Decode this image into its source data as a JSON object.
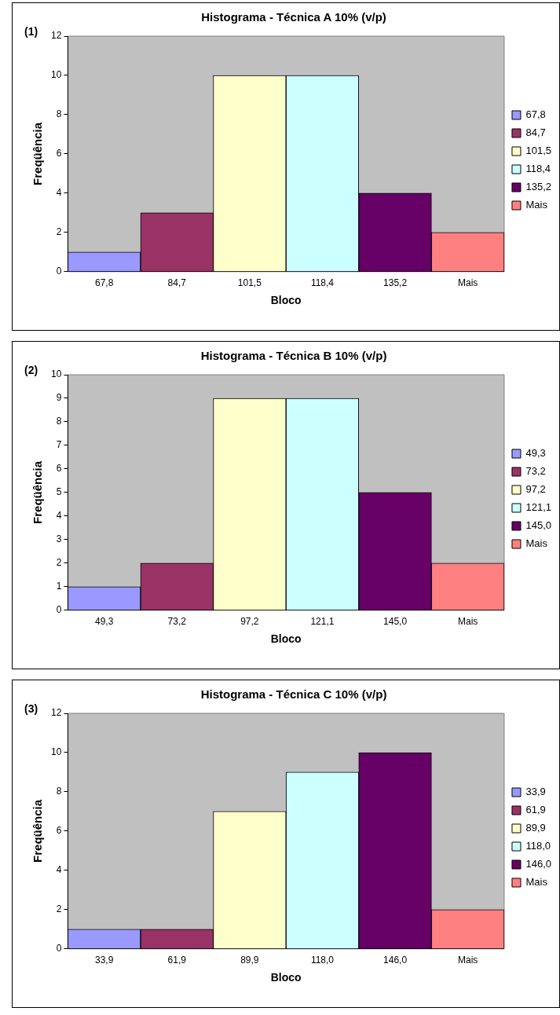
{
  "chart_data": [
    {
      "type": "bar",
      "title": "Histograma - Técnica A 10% (v/p)",
      "xlabel": "Bloco",
      "ylabel": "Freqüência",
      "annotations": [
        "(1)"
      ],
      "categories": [
        "67,8",
        "84,7",
        "101,5",
        "118,4",
        "135,2",
        "Mais"
      ],
      "series": [
        {
          "name": "67,8",
          "color": "#9999ff",
          "values": [
            1,
            null,
            null,
            null,
            null,
            null
          ]
        },
        {
          "name": "84,7",
          "color": "#993366",
          "values": [
            null,
            3,
            null,
            null,
            null,
            null
          ]
        },
        {
          "name": "101,5",
          "color": "#ffffcc",
          "values": [
            null,
            null,
            10,
            null,
            null,
            null
          ]
        },
        {
          "name": "118,4",
          "color": "#ccffff",
          "values": [
            null,
            null,
            null,
            10,
            null,
            null
          ]
        },
        {
          "name": "135,2",
          "color": "#660066",
          "values": [
            null,
            null,
            null,
            null,
            4,
            null
          ]
        },
        {
          "name": "Mais",
          "color": "#ff8080",
          "values": [
            null,
            null,
            null,
            null,
            null,
            2
          ]
        }
      ],
      "ylim": [
        0,
        12
      ],
      "yticks": [
        0,
        2,
        4,
        6,
        8,
        10,
        12
      ],
      "grid": false,
      "legend": "right"
    },
    {
      "type": "bar",
      "title": "Histograma - Técnica B 10% (v/p)",
      "xlabel": "Bloco",
      "ylabel": "Freqüência",
      "annotations": [
        "(2)"
      ],
      "categories": [
        "49,3",
        "73,2",
        "97,2",
        "121,1",
        "145,0",
        "Mais"
      ],
      "series": [
        {
          "name": "49,3",
          "color": "#9999ff",
          "values": [
            1,
            null,
            null,
            null,
            null,
            null
          ]
        },
        {
          "name": "73,2",
          "color": "#993366",
          "values": [
            null,
            2,
            null,
            null,
            null,
            null
          ]
        },
        {
          "name": "97,2",
          "color": "#ffffcc",
          "values": [
            null,
            null,
            9,
            null,
            null,
            null
          ]
        },
        {
          "name": "121,1",
          "color": "#ccffff",
          "values": [
            null,
            null,
            null,
            9,
            null,
            null
          ]
        },
        {
          "name": "145,0",
          "color": "#660066",
          "values": [
            null,
            null,
            null,
            null,
            5,
            null
          ]
        },
        {
          "name": "Mais",
          "color": "#ff8080",
          "values": [
            null,
            null,
            null,
            null,
            null,
            2
          ]
        }
      ],
      "ylim": [
        0,
        10
      ],
      "yticks": [
        0,
        1,
        2,
        3,
        4,
        5,
        6,
        7,
        8,
        9,
        10
      ],
      "grid": false,
      "legend": "right"
    },
    {
      "type": "bar",
      "title": "Histograma - Técnica C 10% (v/p)",
      "xlabel": "Bloco",
      "ylabel": "Freqüência",
      "annotations": [
        "(3)"
      ],
      "categories": [
        "33,9",
        "61,9",
        "89,9",
        "118,0",
        "146,0",
        "Mais"
      ],
      "series": [
        {
          "name": "33,9",
          "color": "#9999ff",
          "values": [
            1,
            null,
            null,
            null,
            null,
            null
          ]
        },
        {
          "name": "61,9",
          "color": "#993366",
          "values": [
            null,
            1,
            null,
            null,
            null,
            null
          ]
        },
        {
          "name": "89,9",
          "color": "#ffffcc",
          "values": [
            null,
            null,
            7,
            null,
            null,
            null
          ]
        },
        {
          "name": "118,0",
          "color": "#ccffff",
          "values": [
            null,
            null,
            null,
            9,
            null,
            null
          ]
        },
        {
          "name": "146,0",
          "color": "#660066",
          "values": [
            null,
            null,
            null,
            null,
            10,
            null
          ]
        },
        {
          "name": "Mais",
          "color": "#ff8080",
          "values": [
            null,
            null,
            null,
            null,
            null,
            2
          ]
        }
      ],
      "ylim": [
        0,
        12
      ],
      "yticks": [
        0,
        2,
        4,
        6,
        8,
        10,
        12
      ],
      "grid": false,
      "legend": "right"
    }
  ]
}
